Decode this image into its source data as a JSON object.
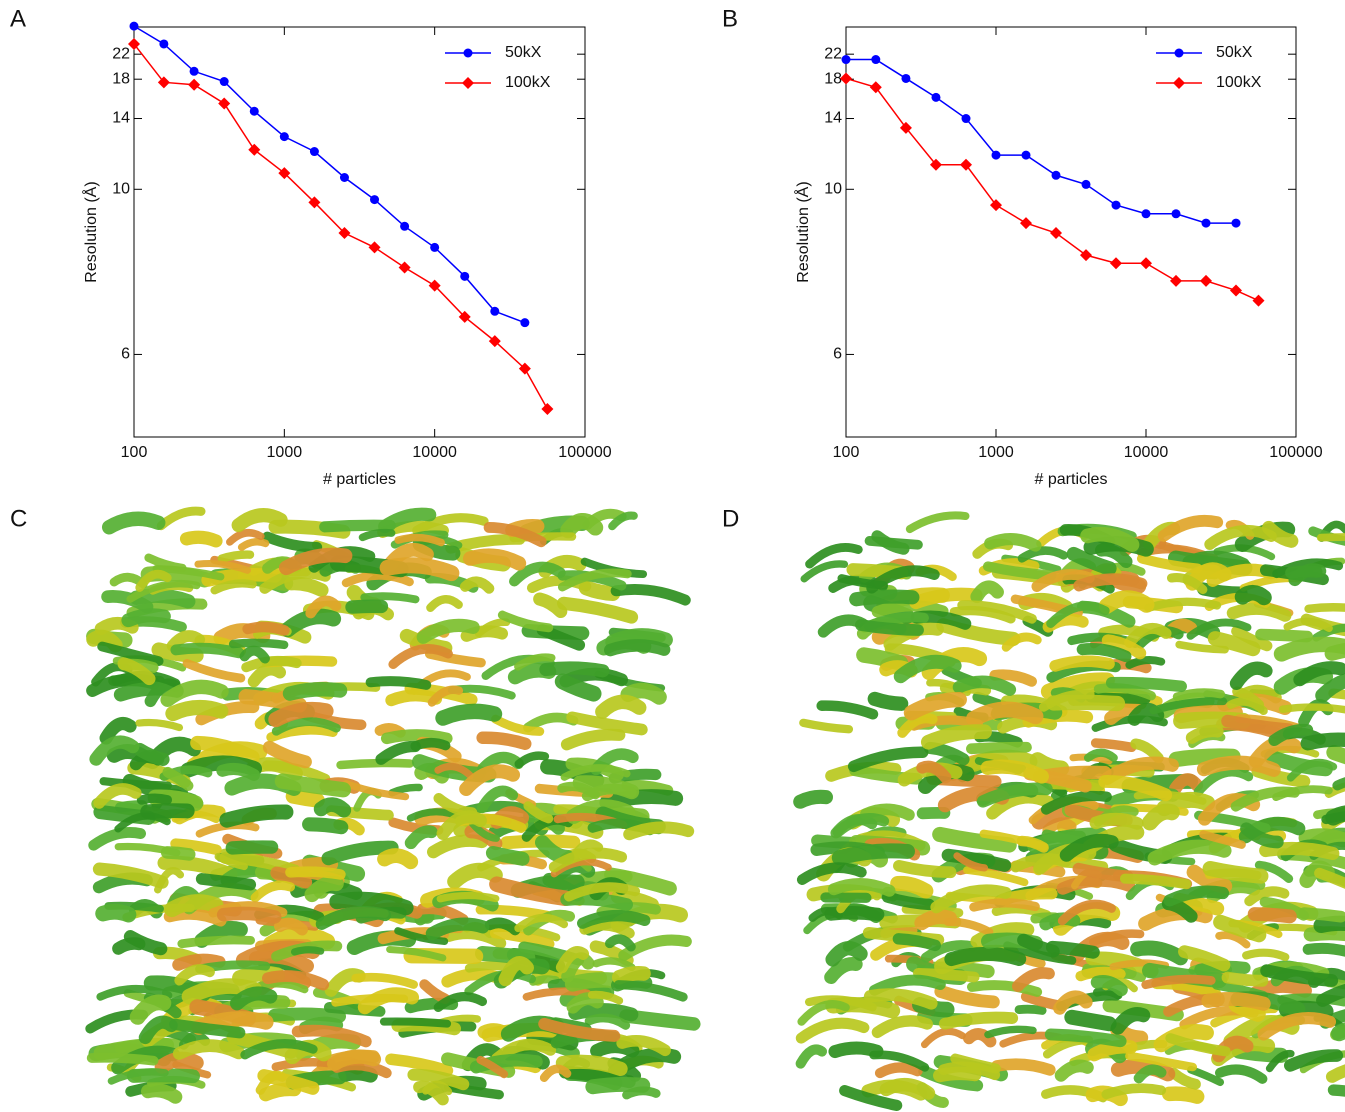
{
  "chart_data": [
    {
      "type": "line",
      "panel_label": "A",
      "xlabel": "# particles",
      "ylabel": "Resolution (Å)",
      "xscale": "log",
      "yscale": "reciprocal",
      "xlim": [
        100,
        100000
      ],
      "ylim": [
        5,
        29
      ],
      "xticks": [
        100,
        1000,
        10000,
        100000
      ],
      "yticks": [
        6,
        10,
        14,
        18,
        22
      ],
      "legend": "upper right",
      "series": [
        {
          "name": "50kX",
          "color": "#0000ff",
          "marker": "circle",
          "x": [
            100,
            158,
            251,
            398,
            631,
            1000,
            1585,
            2512,
            3981,
            6310,
            10000,
            15849,
            25119,
            39811
          ],
          "values": [
            29.3,
            24.2,
            19.1,
            17.7,
            14.6,
            12.7,
            11.8,
            10.5,
            9.6,
            8.7,
            8.1,
            7.4,
            6.7,
            6.5
          ]
        },
        {
          "name": "100kX",
          "color": "#ff0000",
          "marker": "diamond",
          "x": [
            100,
            158,
            251,
            398,
            631,
            1000,
            1585,
            2512,
            3981,
            6310,
            10000,
            15849,
            25119,
            39811,
            56234
          ],
          "values": [
            24.2,
            17.6,
            17.3,
            15.3,
            11.9,
            10.7,
            9.5,
            8.5,
            8.1,
            7.6,
            7.2,
            6.6,
            6.2,
            5.8,
            5.3
          ]
        }
      ]
    },
    {
      "type": "line",
      "panel_label": "B",
      "xlabel": "# particles",
      "ylabel": "Resolution (Å)",
      "xscale": "log",
      "yscale": "reciprocal",
      "xlim": [
        100,
        100000
      ],
      "ylim": [
        5,
        29
      ],
      "xticks": [
        100,
        1000,
        10000,
        100000
      ],
      "yticks": [
        6,
        10,
        14,
        18,
        22
      ],
      "legend": "upper right",
      "series": [
        {
          "name": "50kX",
          "color": "#0000ff",
          "marker": "circle",
          "x": [
            100,
            158,
            251,
            398,
            631,
            1000,
            1585,
            2512,
            3981,
            6310,
            10000,
            15849,
            25119,
            39811
          ],
          "values": [
            21.0,
            21.0,
            18.1,
            15.9,
            14.0,
            11.6,
            11.6,
            10.6,
            10.2,
            9.4,
            9.1,
            9.1,
            8.8,
            8.8
          ]
        },
        {
          "name": "100kX",
          "color": "#ff0000",
          "marker": "diamond",
          "x": [
            100,
            158,
            251,
            398,
            631,
            1000,
            1585,
            2512,
            3981,
            6310,
            10000,
            15849,
            25119,
            39811,
            56234
          ],
          "values": [
            18.1,
            17.0,
            13.3,
            11.1,
            11.1,
            9.4,
            8.8,
            8.5,
            7.9,
            7.7,
            7.7,
            7.3,
            7.3,
            7.1,
            6.9
          ]
        }
      ]
    }
  ],
  "images": [
    {
      "label": "C"
    },
    {
      "label": "D"
    }
  ]
}
